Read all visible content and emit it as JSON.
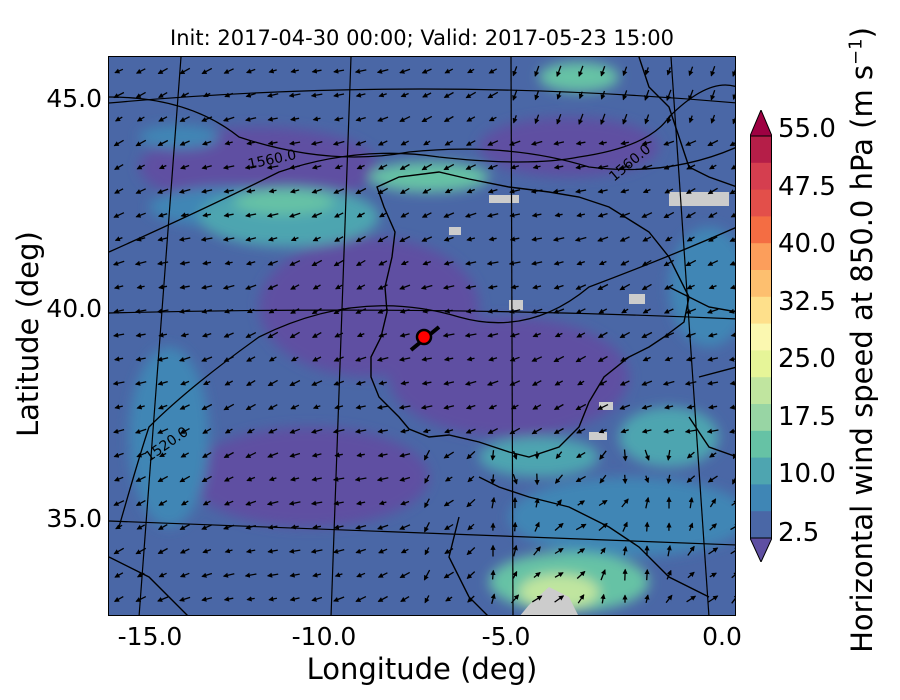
{
  "title": "Init: 2017-04-30 00:00; Valid: 2017-05-23 15:00",
  "axes": {
    "xlabel": "Longitude (deg)",
    "ylabel": "Latitude (deg)",
    "x_ticks": [
      "-15.0",
      "-10.0",
      "-5.0",
      "0.0"
    ],
    "y_ticks": [
      "45.0",
      "40.0",
      "35.0"
    ]
  },
  "colorbar": {
    "label": "Horizontal wind speed at 850.0 hPa (m s",
    "label_exponent": "−1",
    "label_tail": ")",
    "ticks": [
      "55.0",
      "47.5",
      "40.0",
      "32.5",
      "25.0",
      "17.5",
      "10.0",
      "2.5"
    ],
    "colors": [
      "#5e4fa2",
      "#4a67a6",
      "#3f86b5",
      "#4ea5b0",
      "#66c2a5",
      "#98d5a4",
      "#c0e59f",
      "#e6f598",
      "#fbf8b0",
      "#fee08b",
      "#fdbf6f",
      "#fc9e5b",
      "#f46d43",
      "#e34f4a",
      "#d53e4f",
      "#b51e48",
      "#9e0142"
    ]
  },
  "contours": {
    "labels": [
      "1560.0",
      "1560.0",
      "1520.0"
    ]
  },
  "marker": {
    "color": "#ff0000"
  }
}
